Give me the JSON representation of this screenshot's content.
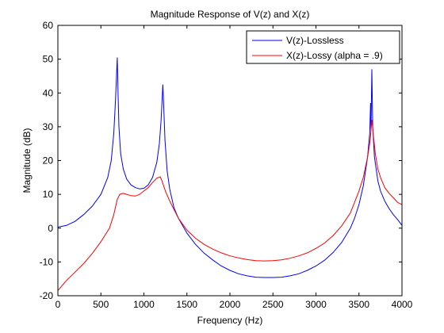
{
  "chart_data": {
    "type": "line",
    "title": "Magnitude Response of V(z) and X(z)",
    "xlabel": "Frequency (Hz)",
    "ylabel": "Magnitude (dB)",
    "xlim": [
      0,
      4000
    ],
    "ylim": [
      -20,
      60
    ],
    "xticks": [
      0,
      500,
      1000,
      1500,
      2000,
      2500,
      3000,
      3500,
      4000
    ],
    "yticks": [
      -20,
      -10,
      0,
      10,
      20,
      30,
      40,
      50,
      60
    ],
    "grid": false,
    "legend_position": "top-right",
    "series": [
      {
        "name": "V(z)-Lossless",
        "color": "#0000ff",
        "points": [
          [
            0,
            0.3
          ],
          [
            100,
            0.8
          ],
          [
            200,
            2
          ],
          [
            300,
            4
          ],
          [
            400,
            6.5
          ],
          [
            500,
            10
          ],
          [
            580,
            15
          ],
          [
            620,
            20
          ],
          [
            650,
            28
          ],
          [
            670,
            38
          ],
          [
            690,
            50.5
          ],
          [
            700,
            40
          ],
          [
            710,
            30
          ],
          [
            730,
            22
          ],
          [
            760,
            17.5
          ],
          [
            800,
            14.5
          ],
          [
            850,
            12.8
          ],
          [
            900,
            12
          ],
          [
            950,
            11.6
          ],
          [
            1000,
            11.8
          ],
          [
            1050,
            12.8
          ],
          [
            1100,
            15
          ],
          [
            1150,
            19.5
          ],
          [
            1180,
            25
          ],
          [
            1200,
            32
          ],
          [
            1220,
            42.5
          ],
          [
            1230,
            36
          ],
          [
            1245,
            26
          ],
          [
            1270,
            17
          ],
          [
            1300,
            11.5
          ],
          [
            1350,
            6
          ],
          [
            1400,
            3
          ],
          [
            1500,
            -1.5
          ],
          [
            1600,
            -4.8
          ],
          [
            1700,
            -7.4
          ],
          [
            1800,
            -9.4
          ],
          [
            1900,
            -11.2
          ],
          [
            2000,
            -12.5
          ],
          [
            2100,
            -13.5
          ],
          [
            2200,
            -14.1
          ],
          [
            2300,
            -14.5
          ],
          [
            2400,
            -14.6
          ],
          [
            2500,
            -14.6
          ],
          [
            2600,
            -14.5
          ],
          [
            2700,
            -14.1
          ],
          [
            2800,
            -13.5
          ],
          [
            2900,
            -12.5
          ],
          [
            3000,
            -11.2
          ],
          [
            3100,
            -9.5
          ],
          [
            3200,
            -7.2
          ],
          [
            3300,
            -4.2
          ],
          [
            3400,
            0
          ],
          [
            3450,
            3
          ],
          [
            3500,
            7
          ],
          [
            3550,
            12.5
          ],
          [
            3600,
            21
          ],
          [
            3625,
            28
          ],
          [
            3635,
            37
          ],
          [
            3640,
            29
          ],
          [
            3650,
            47
          ],
          [
            3660,
            30
          ],
          [
            3680,
            21
          ],
          [
            3720,
            14
          ],
          [
            3750,
            11
          ],
          [
            3800,
            8
          ],
          [
            3850,
            5.8
          ],
          [
            3900,
            4
          ],
          [
            3950,
            2.5
          ],
          [
            4000,
            0.8
          ]
        ]
      },
      {
        "name": "X(z)-Lossy (alpha = .9)",
        "color": "#ff0000",
        "points": [
          [
            0,
            -18.5
          ],
          [
            50,
            -17
          ],
          [
            100,
            -15.5
          ],
          [
            200,
            -13
          ],
          [
            300,
            -10.5
          ],
          [
            400,
            -7.5
          ],
          [
            500,
            -4
          ],
          [
            600,
            0
          ],
          [
            650,
            4
          ],
          [
            690,
            8.5
          ],
          [
            720,
            10
          ],
          [
            760,
            10.3
          ],
          [
            800,
            10
          ],
          [
            850,
            9.6
          ],
          [
            900,
            9.5
          ],
          [
            950,
            10
          ],
          [
            1000,
            11
          ],
          [
            1050,
            12
          ],
          [
            1100,
            13.5
          ],
          [
            1150,
            14.8
          ],
          [
            1190,
            15.2
          ],
          [
            1210,
            14
          ],
          [
            1250,
            11
          ],
          [
            1300,
            8
          ],
          [
            1400,
            3
          ],
          [
            1500,
            -0.6
          ],
          [
            1600,
            -3
          ],
          [
            1700,
            -4.8
          ],
          [
            1800,
            -6.2
          ],
          [
            1900,
            -7.3
          ],
          [
            2000,
            -8.2
          ],
          [
            2100,
            -8.8
          ],
          [
            2200,
            -9.3
          ],
          [
            2300,
            -9.6
          ],
          [
            2400,
            -9.7
          ],
          [
            2500,
            -9.6
          ],
          [
            2600,
            -9.4
          ],
          [
            2700,
            -8.9
          ],
          [
            2800,
            -8.2
          ],
          [
            2900,
            -7.3
          ],
          [
            3000,
            -6
          ],
          [
            3100,
            -4.4
          ],
          [
            3200,
            -2.2
          ],
          [
            3300,
            0.7
          ],
          [
            3400,
            4.5
          ],
          [
            3500,
            11
          ],
          [
            3550,
            15
          ],
          [
            3600,
            21
          ],
          [
            3630,
            26
          ],
          [
            3650,
            32
          ],
          [
            3665,
            28
          ],
          [
            3690,
            22
          ],
          [
            3720,
            17.5
          ],
          [
            3750,
            15
          ],
          [
            3800,
            12
          ],
          [
            3850,
            10.3
          ],
          [
            3900,
            9
          ],
          [
            3950,
            7.6
          ],
          [
            4000,
            7
          ]
        ]
      }
    ]
  }
}
